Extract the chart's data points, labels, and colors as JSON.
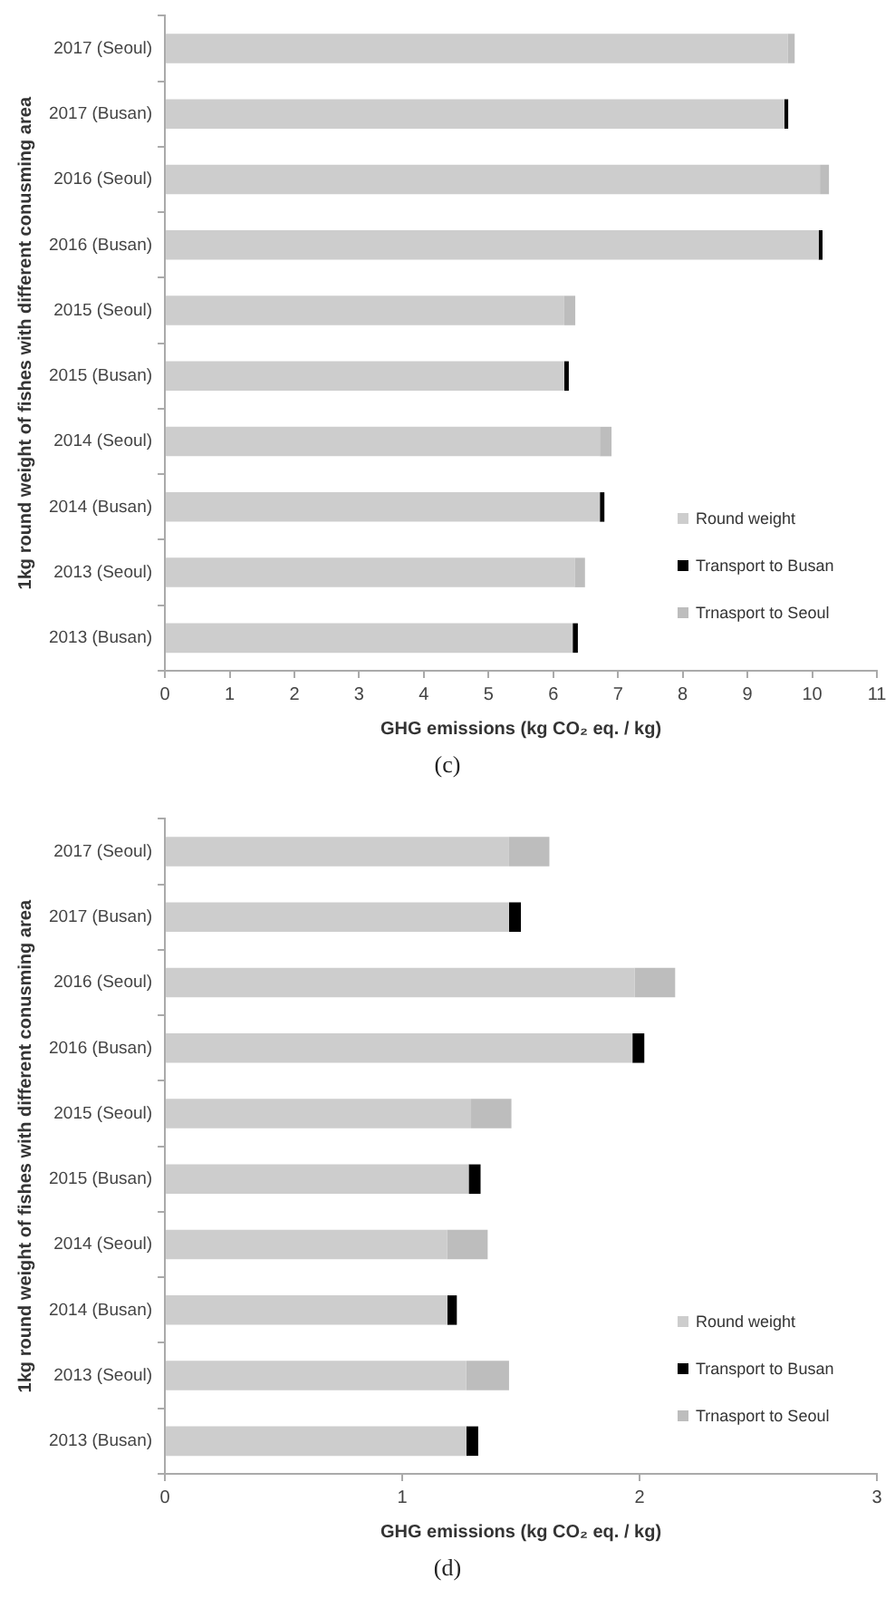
{
  "chart_data": [
    {
      "type": "bar",
      "orientation": "horizontal",
      "stacked": true,
      "xlabel": "GHG emissions (kg CO₂ eq. / kg)",
      "ylabel": "1kg round weight of fishes with different conusming area",
      "legend": "bottom right",
      "annotations": [
        "(c)"
      ],
      "categories": [
        "2017 (Seoul)",
        "2017 (Busan)",
        "2016 (Seoul)",
        "2016 (Busan)",
        "2015 (Seoul)",
        "2015 (Busan)",
        "2014 (Seoul)",
        "2014 (Busan)",
        "2013 (Seoul)",
        "2013 (Busan)"
      ],
      "xlim": [
        0,
        11
      ],
      "xticks": [
        0,
        1,
        2,
        3,
        4,
        5,
        6,
        7,
        8,
        9,
        10,
        11
      ],
      "series": [
        {
          "name": "Round weight",
          "color": "#cdcdcd",
          "values": [
            9.62,
            9.57,
            10.12,
            10.1,
            6.17,
            6.17,
            6.72,
            6.72,
            6.33,
            6.3
          ]
        },
        {
          "name": "Transport to Busan",
          "color": "#000000",
          "values": [
            null,
            0.06,
            null,
            0.06,
            null,
            0.07,
            null,
            0.07,
            null,
            0.08
          ]
        },
        {
          "name": "Trnasport to Seoul",
          "color": "#bdbdbd",
          "values": [
            0.11,
            null,
            0.14,
            null,
            0.17,
            null,
            0.18,
            null,
            0.16,
            null
          ]
        }
      ]
    },
    {
      "type": "bar",
      "orientation": "horizontal",
      "stacked": true,
      "xlabel": "GHG emissions (kg CO₂ eq. / kg)",
      "ylabel": "1kg round weight of fishes with different conusming area",
      "legend": "bottom right",
      "annotations": [
        "(d)"
      ],
      "categories": [
        "2017 (Seoul)",
        "2017 (Busan)",
        "2016 (Seoul)",
        "2016 (Busan)",
        "2015 (Seoul)",
        "2015 (Busan)",
        "2014 (Seoul)",
        "2014 (Busan)",
        "2013 (Seoul)",
        "2013 (Busan)"
      ],
      "xlim": [
        0,
        3
      ],
      "xticks": [
        0,
        1,
        2,
        3
      ],
      "series": [
        {
          "name": "Round weight",
          "color": "#cdcdcd",
          "values": [
            1.45,
            1.45,
            1.98,
            1.97,
            1.29,
            1.28,
            1.19,
            1.19,
            1.27,
            1.27
          ]
        },
        {
          "name": "Transport to Busan",
          "color": "#000000",
          "values": [
            null,
            0.05,
            null,
            0.05,
            null,
            0.05,
            null,
            0.04,
            null,
            0.05
          ]
        },
        {
          "name": "Trnasport to Seoul",
          "color": "#bdbdbd",
          "values": [
            0.17,
            null,
            0.17,
            null,
            0.17,
            null,
            0.17,
            null,
            0.18,
            null
          ]
        }
      ]
    }
  ]
}
